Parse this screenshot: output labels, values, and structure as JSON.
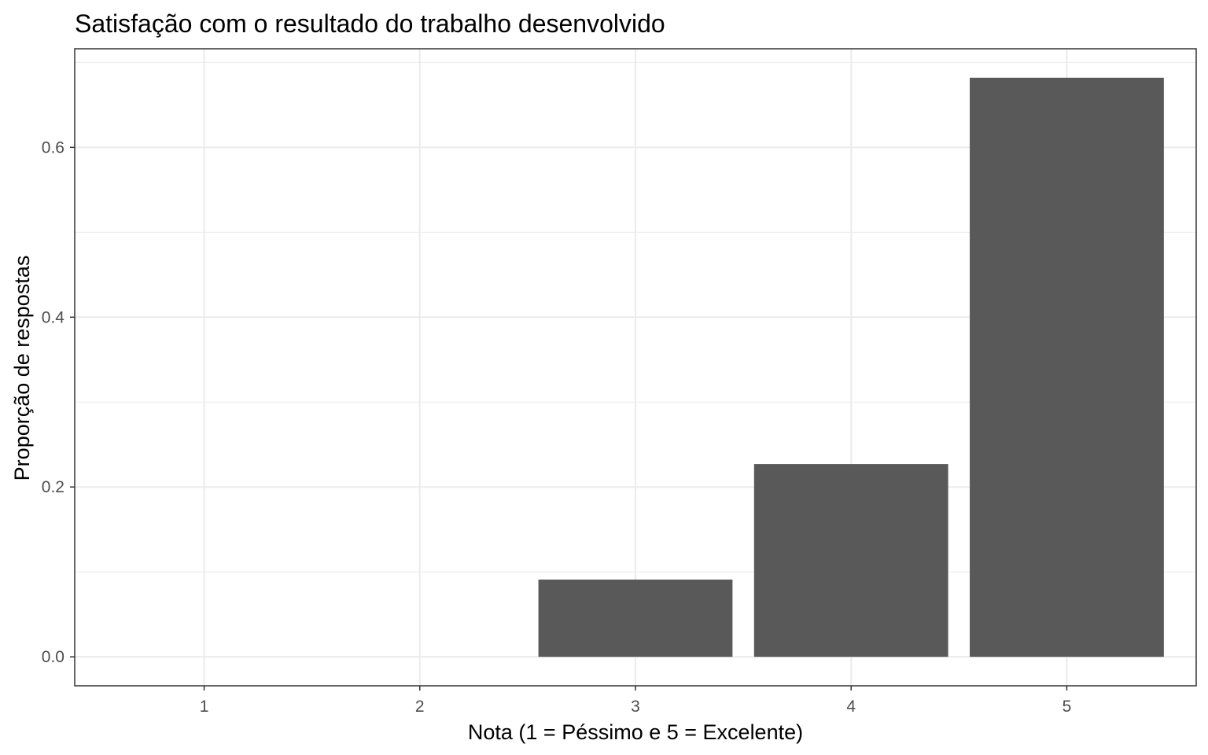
{
  "chart_data": {
    "type": "bar",
    "title": "Satisfação com o resultado do trabalho desenvolvido",
    "xlabel": "Nota (1 = Péssimo e 5 = Excelente)",
    "ylabel": "Proporção de respostas",
    "categories": [
      "1",
      "2",
      "3",
      "4",
      "5"
    ],
    "values": [
      0,
      0,
      0.091,
      0.227,
      0.682
    ],
    "ylim": [
      -0.0341,
      0.7161
    ],
    "yticks": [
      0.0,
      0.2,
      0.4,
      0.6
    ],
    "ytick_labels": [
      "0.0",
      "0.2",
      "0.4",
      "0.6"
    ],
    "grid": true,
    "legend": "none",
    "bar_color": "#595959",
    "grid_color": "#ebebeb",
    "panel_border_color": "#333333"
  }
}
